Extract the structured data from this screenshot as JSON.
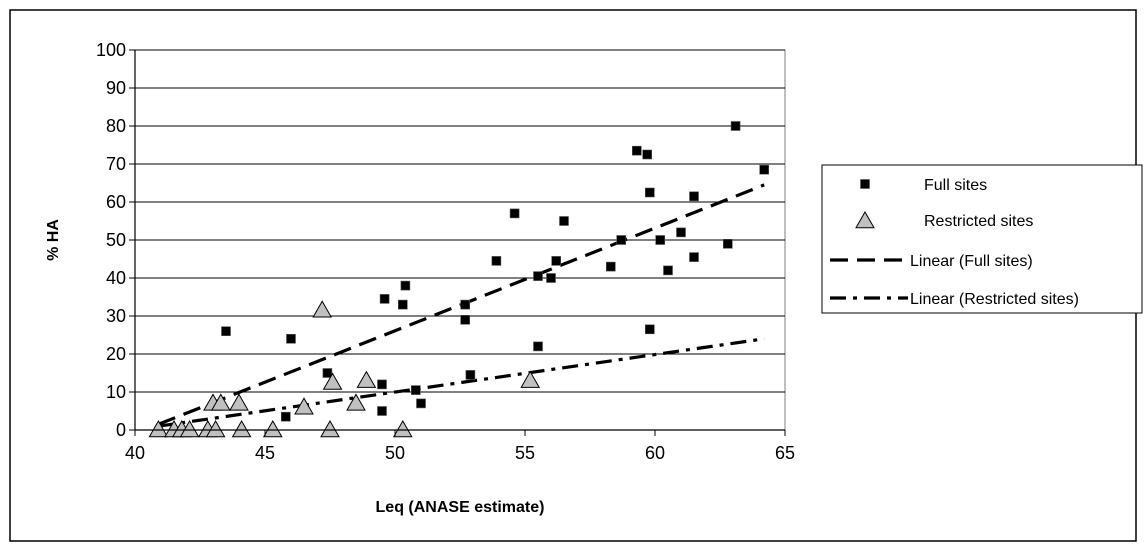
{
  "chart_data": {
    "type": "scatter",
    "title": "",
    "xlabel": "Leq (ANASE estimate)",
    "ylabel": "% HA",
    "xlim": [
      40,
      65
    ],
    "ylim": [
      0,
      100
    ],
    "xticks": [
      40,
      45,
      50,
      55,
      60,
      65
    ],
    "yticks": [
      0,
      10,
      20,
      30,
      40,
      50,
      60,
      70,
      80,
      90,
      100
    ],
    "grid": "horizontal",
    "legend_position": "right",
    "series": [
      {
        "name": "Full sites",
        "marker": "square",
        "color": "#000000",
        "points": [
          [
            43.5,
            26
          ],
          [
            45.8,
            3.5
          ],
          [
            46.0,
            24
          ],
          [
            47.4,
            15
          ],
          [
            49.5,
            5
          ],
          [
            49.5,
            12
          ],
          [
            49.6,
            34.5
          ],
          [
            50.3,
            33
          ],
          [
            50.4,
            38
          ],
          [
            50.8,
            10.5
          ],
          [
            51.0,
            7
          ],
          [
            52.7,
            33
          ],
          [
            52.7,
            29
          ],
          [
            52.9,
            14.5
          ],
          [
            53.9,
            44.5
          ],
          [
            54.6,
            57
          ],
          [
            55.5,
            40.5
          ],
          [
            55.5,
            22
          ],
          [
            56.0,
            40
          ],
          [
            56.2,
            44.5
          ],
          [
            56.5,
            55
          ],
          [
            58.3,
            43
          ],
          [
            58.7,
            50
          ],
          [
            59.3,
            73.5
          ],
          [
            59.7,
            72.5
          ],
          [
            59.8,
            62.5
          ],
          [
            59.8,
            26.5
          ],
          [
            60.2,
            50
          ],
          [
            60.5,
            42
          ],
          [
            61.0,
            52
          ],
          [
            61.5,
            61.5
          ],
          [
            61.5,
            45.5
          ],
          [
            62.8,
            49
          ],
          [
            63.1,
            80
          ],
          [
            64.2,
            68.5
          ]
        ]
      },
      {
        "name": "Restricted sites",
        "marker": "triangle",
        "color": "#c0c0c0",
        "points": [
          [
            40.9,
            0
          ],
          [
            41.5,
            0
          ],
          [
            41.8,
            0
          ],
          [
            42.1,
            0
          ],
          [
            42.8,
            0
          ],
          [
            43.1,
            0
          ],
          [
            43.0,
            7
          ],
          [
            43.3,
            7
          ],
          [
            44.0,
            7
          ],
          [
            44.1,
            0
          ],
          [
            45.3,
            0
          ],
          [
            46.5,
            6
          ],
          [
            47.2,
            31.5
          ],
          [
            47.5,
            0
          ],
          [
            47.6,
            12.5
          ],
          [
            48.5,
            7
          ],
          [
            48.9,
            13
          ],
          [
            50.3,
            0
          ],
          [
            55.2,
            13
          ]
        ]
      },
      {
        "name": "Linear (Full sites)",
        "type": "line",
        "style": "dashed",
        "color": "#000000",
        "points": [
          [
            40.9,
            1.5
          ],
          [
            64.2,
            64.5
          ]
        ]
      },
      {
        "name": "Linear (Restricted sites)",
        "type": "line",
        "style": "dash-dot",
        "color": "#000000",
        "points": [
          [
            40.9,
            1
          ],
          [
            64.2,
            24
          ]
        ]
      }
    ]
  }
}
